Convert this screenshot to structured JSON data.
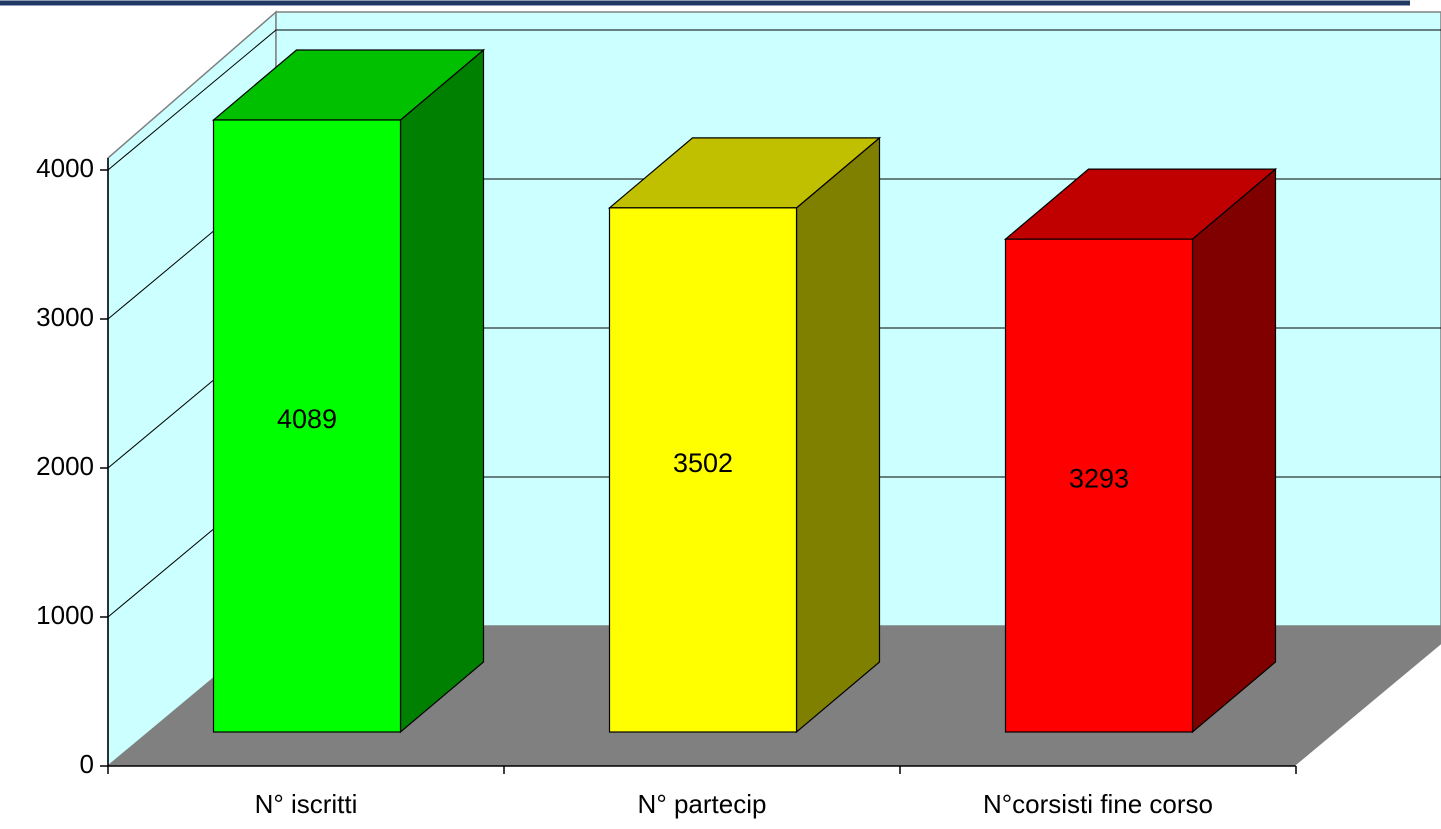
{
  "chart_data": {
    "type": "bar",
    "categories": [
      "N° iscritti",
      "N° partecip",
      "N°corsisti fine corso"
    ],
    "values": [
      4089,
      3502,
      3293
    ],
    "ylim": [
      0,
      4000
    ],
    "yticks": [
      0,
      1000,
      2000,
      3000,
      4000
    ],
    "grid": true,
    "legend": "none"
  },
  "colors": {
    "wall": "#ccffff",
    "floor": "#808080",
    "gridline": "#000000",
    "header_bar": "#1f3864",
    "bars": [
      {
        "front": "#00ff00",
        "top": "#00c000",
        "side": "#008000"
      },
      {
        "front": "#ffff00",
        "top": "#c0c000",
        "side": "#808000"
      },
      {
        "front": "#ff0000",
        "top": "#c00000",
        "side": "#800000"
      }
    ]
  }
}
